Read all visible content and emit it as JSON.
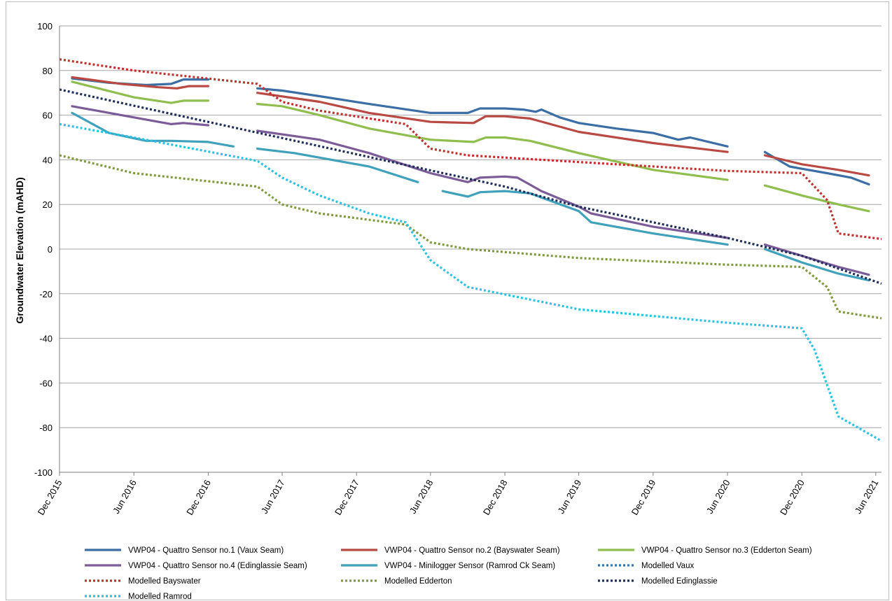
{
  "chart_data": {
    "type": "line",
    "title": "",
    "xlabel": "",
    "ylabel": "Groundwater Elevation (mAHD)",
    "ylim": [
      -100,
      100
    ],
    "xlim": [
      "2015-12-01",
      "2021-06-15"
    ],
    "grid": true,
    "legend_position": "bottom",
    "y_ticks": [
      100,
      80,
      60,
      40,
      20,
      0,
      -20,
      -40,
      -60,
      -80,
      -100
    ],
    "x_ticks": [
      {
        "label": "Dec 2015",
        "date": "2015-12-01"
      },
      {
        "label": "Jun 2016",
        "date": "2016-06-01"
      },
      {
        "label": "Dec 2016",
        "date": "2016-12-01"
      },
      {
        "label": "Jun 2017",
        "date": "2017-06-01"
      },
      {
        "label": "Dec 2017",
        "date": "2017-12-01"
      },
      {
        "label": "Jun 2018",
        "date": "2018-06-01"
      },
      {
        "label": "Dec 2018",
        "date": "2018-12-01"
      },
      {
        "label": "Jun 2019",
        "date": "2019-06-01"
      },
      {
        "label": "Dec 2019",
        "date": "2019-12-01"
      },
      {
        "label": "Jun 2020",
        "date": "2020-06-01"
      },
      {
        "label": "Dec 2020",
        "date": "2020-12-01"
      },
      {
        "label": "Jun 2021",
        "date": "2021-06-01"
      }
    ],
    "series": [
      {
        "name": "VWP04 - Quattro Sensor no.1 (Vaux Seam)",
        "color": "#3a6ea5",
        "style": "solid",
        "segments": [
          [
            [
              "2016-01-01",
              76.5
            ],
            [
              "2016-04-01",
              74.5
            ],
            [
              "2016-07-01",
              73.5
            ],
            [
              "2016-09-01",
              74.0
            ],
            [
              "2016-10-01",
              76.0
            ],
            [
              "2016-12-01",
              76.0
            ]
          ],
          [
            [
              "2017-04-01",
              72.0
            ],
            [
              "2017-06-01",
              71.0
            ],
            [
              "2017-09-01",
              68.5
            ],
            [
              "2018-01-01",
              65.0
            ],
            [
              "2018-06-01",
              61.0
            ],
            [
              "2018-09-01",
              61.0
            ],
            [
              "2018-10-01",
              63.0
            ],
            [
              "2018-12-01",
              63.0
            ],
            [
              "2019-01-15",
              62.5
            ],
            [
              "2019-02-15",
              61.5
            ],
            [
              "2019-03-01",
              62.5
            ],
            [
              "2019-04-15",
              59.0
            ],
            [
              "2019-06-01",
              56.5
            ],
            [
              "2019-09-01",
              54.0
            ],
            [
              "2019-12-01",
              52.0
            ],
            [
              "2020-02-01",
              49.0
            ],
            [
              "2020-03-01",
              50.0
            ],
            [
              "2020-06-01",
              46.0
            ]
          ],
          [
            [
              "2020-09-01",
              43.5
            ],
            [
              "2020-11-01",
              37.0
            ],
            [
              "2020-12-01",
              36.0
            ],
            [
              "2021-02-01",
              34.0
            ],
            [
              "2021-04-01",
              32.0
            ],
            [
              "2021-05-15",
              29.0
            ]
          ]
        ]
      },
      {
        "name": "VWP04 - Quattro Sensor no.2 (Bayswater Seam)",
        "color": "#b94a43",
        "style": "solid",
        "segments": [
          [
            [
              "2016-01-01",
              77.0
            ],
            [
              "2016-05-01",
              74.0
            ],
            [
              "2016-08-01",
              72.5
            ],
            [
              "2016-09-15",
              72.0
            ],
            [
              "2016-10-15",
              73.0
            ],
            [
              "2016-12-01",
              73.0
            ]
          ],
          [
            [
              "2017-04-01",
              70.0
            ],
            [
              "2017-09-01",
              66.0
            ],
            [
              "2018-01-01",
              61.0
            ],
            [
              "2018-06-01",
              57.0
            ],
            [
              "2018-09-15",
              56.5
            ],
            [
              "2018-10-15",
              59.5
            ],
            [
              "2018-12-01",
              59.5
            ],
            [
              "2019-02-01",
              58.5
            ],
            [
              "2019-06-01",
              52.5
            ],
            [
              "2019-12-01",
              47.5
            ],
            [
              "2020-06-01",
              43.5
            ]
          ],
          [
            [
              "2020-09-01",
              42.0
            ],
            [
              "2020-12-01",
              38.0
            ],
            [
              "2021-03-01",
              35.5
            ],
            [
              "2021-05-15",
              33.0
            ]
          ]
        ]
      },
      {
        "name": "VWP04 - Quattro Sensor no.3 (Edderton Seam)",
        "color": "#8fbd4e",
        "style": "solid",
        "segments": [
          [
            [
              "2016-01-01",
              75.0
            ],
            [
              "2016-06-01",
              68.0
            ],
            [
              "2016-09-01",
              65.5
            ],
            [
              "2016-10-01",
              66.5
            ],
            [
              "2016-12-01",
              66.5
            ]
          ],
          [
            [
              "2017-04-01",
              65.0
            ],
            [
              "2017-06-01",
              64.0
            ],
            [
              "2017-09-01",
              60.0
            ],
            [
              "2018-01-01",
              54.0
            ],
            [
              "2018-06-01",
              49.0
            ],
            [
              "2018-09-15",
              48.0
            ],
            [
              "2018-10-15",
              50.0
            ],
            [
              "2018-12-01",
              50.0
            ],
            [
              "2019-02-01",
              48.5
            ],
            [
              "2019-06-01",
              43.0
            ],
            [
              "2019-12-01",
              35.5
            ],
            [
              "2020-06-01",
              31.0
            ]
          ],
          [
            [
              "2020-09-01",
              28.5
            ],
            [
              "2020-12-01",
              24.0
            ],
            [
              "2021-03-01",
              20.0
            ],
            [
              "2021-05-15",
              17.0
            ]
          ]
        ]
      },
      {
        "name": "VWP04 - Quattro Sensor no.4 (Edinglassie Seam)",
        "color": "#7b5c99",
        "style": "solid",
        "segments": [
          [
            [
              "2016-01-01",
              64.0
            ],
            [
              "2016-06-01",
              59.0
            ],
            [
              "2016-09-01",
              56.0
            ],
            [
              "2016-10-01",
              56.5
            ],
            [
              "2016-12-01",
              55.5
            ]
          ],
          [
            [
              "2017-04-01",
              53.0
            ],
            [
              "2017-09-01",
              49.0
            ],
            [
              "2018-01-01",
              43.0
            ],
            [
              "2018-06-01",
              34.0
            ],
            [
              "2018-09-01",
              30.0
            ],
            [
              "2018-10-01",
              32.0
            ],
            [
              "2018-12-01",
              32.5
            ],
            [
              "2019-01-01",
              32.0
            ],
            [
              "2019-03-01",
              26.0
            ],
            [
              "2019-06-01",
              19.0
            ],
            [
              "2019-07-01",
              16.0
            ],
            [
              "2019-12-01",
              10.0
            ],
            [
              "2020-06-01",
              5.0
            ]
          ],
          [
            [
              "2020-09-01",
              2.0
            ],
            [
              "2020-12-01",
              -3.0
            ],
            [
              "2021-03-01",
              -8.0
            ],
            [
              "2021-05-15",
              -11.5
            ]
          ]
        ]
      },
      {
        "name": "VWP04 - Minilogger Sensor (Ramrod Ck Seam)",
        "color": "#3fa1bb",
        "style": "solid",
        "segments": [
          [
            [
              "2016-01-01",
              61.0
            ],
            [
              "2016-04-01",
              52.0
            ],
            [
              "2016-07-01",
              48.5
            ],
            [
              "2016-09-01",
              48.5
            ],
            [
              "2016-12-01",
              48.0
            ],
            [
              "2017-02-01",
              46.0
            ]
          ],
          [
            [
              "2017-04-01",
              45.0
            ],
            [
              "2017-07-01",
              43.0
            ],
            [
              "2018-01-01",
              37.0
            ],
            [
              "2018-05-01",
              30.0
            ]
          ],
          [
            [
              "2018-07-01",
              26.0
            ],
            [
              "2018-09-01",
              23.5
            ],
            [
              "2018-10-01",
              25.5
            ],
            [
              "2018-12-01",
              26.0
            ],
            [
              "2019-02-01",
              25.0
            ],
            [
              "2019-06-01",
              17.0
            ],
            [
              "2019-07-01",
              12.0
            ],
            [
              "2019-12-01",
              7.0
            ],
            [
              "2020-06-01",
              2.0
            ]
          ],
          [
            [
              "2020-09-01",
              0.0
            ],
            [
              "2020-12-01",
              -6.0
            ],
            [
              "2021-03-01",
              -11.0
            ],
            [
              "2021-05-15",
              -14.0
            ]
          ]
        ]
      },
      {
        "name": "Modelled Vaux",
        "color": "#2e75b6",
        "style": "dotted",
        "segments": []
      },
      {
        "name": "Modelled Bayswater",
        "color": "#c0302c",
        "style": "dotted",
        "segments": [
          [
            [
              "2015-12-01",
              85.0
            ],
            [
              "2016-06-01",
              80.0
            ],
            [
              "2017-04-01",
              74.0
            ],
            [
              "2017-06-01",
              66.0
            ],
            [
              "2017-09-01",
              62.0
            ],
            [
              "2018-04-01",
              56.0
            ],
            [
              "2018-06-01",
              45.0
            ],
            [
              "2018-09-01",
              42.0
            ],
            [
              "2019-06-01",
              39.0
            ],
            [
              "2020-06-01",
              35.0
            ],
            [
              "2020-12-01",
              34.0
            ],
            [
              "2021-02-01",
              22.0
            ],
            [
              "2021-03-01",
              7.0
            ],
            [
              "2021-06-15",
              4.5
            ]
          ]
        ]
      },
      {
        "name": "Modelled Edderton",
        "color": "#7f9a3b",
        "style": "dotted",
        "segments": [
          [
            [
              "2015-12-01",
              42.0
            ],
            [
              "2016-06-01",
              34.0
            ],
            [
              "2017-04-01",
              28.0
            ],
            [
              "2017-06-01",
              20.0
            ],
            [
              "2017-09-01",
              16.0
            ],
            [
              "2018-04-01",
              11.0
            ],
            [
              "2018-06-01",
              3.0
            ],
            [
              "2018-09-01",
              0.0
            ],
            [
              "2019-06-01",
              -4.0
            ],
            [
              "2020-06-01",
              -7.0
            ],
            [
              "2020-12-01",
              -8.0
            ],
            [
              "2021-02-01",
              -17.0
            ],
            [
              "2021-03-01",
              -28.0
            ],
            [
              "2021-06-15",
              -31.0
            ]
          ]
        ]
      },
      {
        "name": "Modelled Edinglassie",
        "color": "#1f2e5a",
        "style": "dotted",
        "segments": [
          [
            [
              "2015-12-01",
              71.5
            ],
            [
              "2018-12-01",
              28.0
            ],
            [
              "2019-06-01",
              19.0
            ],
            [
              "2020-06-01",
              5.0
            ],
            [
              "2020-12-01",
              -3.0
            ],
            [
              "2021-06-15",
              -15.5
            ]
          ]
        ]
      },
      {
        "name": "Modelled Ramrod",
        "color": "#29c1e6",
        "style": "dotted",
        "segments": [
          [
            [
              "2015-12-01",
              56.0
            ],
            [
              "2016-06-01",
              50.0
            ],
            [
              "2017-04-01",
              39.5
            ],
            [
              "2017-06-01",
              32.0
            ],
            [
              "2017-09-01",
              24.0
            ],
            [
              "2018-01-01",
              16.0
            ],
            [
              "2018-04-01",
              12.0
            ],
            [
              "2018-06-01",
              -5.0
            ],
            [
              "2018-09-01",
              -17.0
            ],
            [
              "2019-06-01",
              -27.0
            ],
            [
              "2020-06-01",
              -33.0
            ],
            [
              "2020-12-01",
              -35.5
            ],
            [
              "2021-01-01",
              -45.0
            ],
            [
              "2021-03-01",
              -75.0
            ],
            [
              "2021-06-15",
              -86.0
            ]
          ]
        ]
      }
    ]
  }
}
